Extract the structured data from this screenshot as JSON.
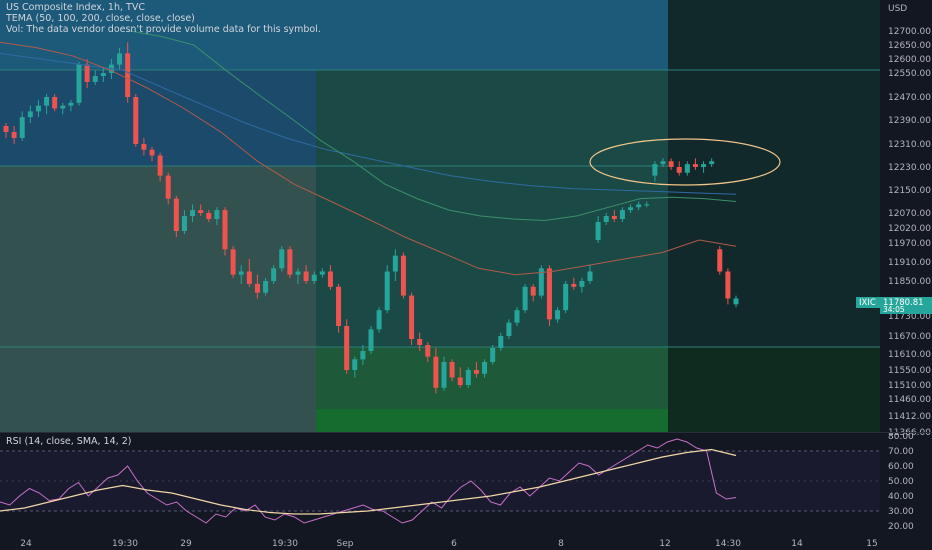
{
  "header": {
    "title": "US Composite Index, 1h, TVC",
    "tema": "TEMA (50, 100, 200, close, close, close)",
    "vol": "Vol: The data vendor doesn't provide volume data for this symbol."
  },
  "rsi_header": "RSI (14, close, SMA, 14, 2)",
  "currency": "USD",
  "symbol": "IXIC",
  "last_price": "11780.81",
  "countdown": "34:05",
  "colors": {
    "background": "#131722",
    "up": "#26a69a",
    "down": "#ef5350",
    "tema_fast": "#3b8f6a",
    "tema_mid": "#b05a4a",
    "tema_slow": "#2f6aa3",
    "rsi": "#c770c8",
    "rsi_ma": "#f0d6a6",
    "ellipse": "#f0c48a"
  },
  "chart_data": [
    {
      "type": "candlestick",
      "title": "US Composite Index, 1h, TVC",
      "ylim": [
        11366,
        12780
      ],
      "y_ticks": [
        12700,
        12650,
        12600,
        12550,
        12470,
        12390,
        12310,
        12230,
        12150,
        12070,
        12020,
        11970,
        11910,
        11850,
        11730,
        11670,
        11610,
        11550,
        11510,
        11460,
        11412,
        11366
      ],
      "x_ticks": [
        "24",
        "19:30",
        "29",
        "19:30",
        "Sep",
        "6",
        "8",
        "12",
        "14:30",
        "14",
        "15"
      ],
      "candles": [
        [
          12370,
          12380,
          12330,
          12350
        ],
        [
          12350,
          12370,
          12310,
          12330
        ],
        [
          12330,
          12420,
          12320,
          12400
        ],
        [
          12400,
          12440,
          12380,
          12420
        ],
        [
          12420,
          12460,
          12400,
          12440
        ],
        [
          12440,
          12480,
          12410,
          12470
        ],
        [
          12470,
          12480,
          12420,
          12430
        ],
        [
          12430,
          12450,
          12410,
          12440
        ],
        [
          12440,
          12460,
          12420,
          12450
        ],
        [
          12450,
          12590,
          12440,
          12580
        ],
        [
          12580,
          12600,
          12500,
          12520
        ],
        [
          12520,
          12560,
          12510,
          12540
        ],
        [
          12540,
          12570,
          12520,
          12550
        ],
        [
          12550,
          12600,
          12530,
          12580
        ],
        [
          12580,
          12640,
          12560,
          12620
        ],
        [
          12620,
          12660,
          12450,
          12470
        ],
        [
          12470,
          12480,
          12300,
          12310
        ],
        [
          12310,
          12330,
          12270,
          12290
        ],
        [
          12290,
          12300,
          12250,
          12270
        ],
        [
          12270,
          12280,
          12180,
          12200
        ],
        [
          12200,
          12210,
          12100,
          12120
        ],
        [
          12120,
          12130,
          11990,
          12010
        ],
        [
          12010,
          12080,
          12000,
          12060
        ],
        [
          12060,
          12100,
          12040,
          12080
        ],
        [
          12080,
          12100,
          12060,
          12070
        ],
        [
          12070,
          12080,
          12040,
          12050
        ],
        [
          12050,
          12090,
          12030,
          12080
        ],
        [
          12080,
          12090,
          11930,
          11950
        ],
        [
          11950,
          11960,
          11860,
          11870
        ],
        [
          11870,
          11900,
          11840,
          11880
        ],
        [
          11880,
          11920,
          11830,
          11840
        ],
        [
          11840,
          11870,
          11790,
          11810
        ],
        [
          11810,
          11860,
          11800,
          11850
        ],
        [
          11850,
          11900,
          11840,
          11890
        ],
        [
          11890,
          11960,
          11880,
          11950
        ],
        [
          11950,
          11960,
          11860,
          11870
        ],
        [
          11870,
          11890,
          11840,
          11880
        ],
        [
          11880,
          11900,
          11840,
          11850
        ],
        [
          11850,
          11880,
          11840,
          11870
        ],
        [
          11870,
          11890,
          11860,
          11880
        ],
        [
          11880,
          11900,
          11820,
          11830
        ],
        [
          11830,
          11840,
          11680,
          11700
        ],
        [
          11700,
          11720,
          11540,
          11550
        ],
        [
          11550,
          11600,
          11530,
          11590
        ],
        [
          11590,
          11640,
          11570,
          11620
        ],
        [
          11620,
          11700,
          11610,
          11690
        ],
        [
          11690,
          11760,
          11680,
          11750
        ],
        [
          11750,
          11900,
          11740,
          11880
        ],
        [
          11880,
          11950,
          11850,
          11930
        ],
        [
          11930,
          11940,
          11790,
          11800
        ],
        [
          11800,
          11810,
          11640,
          11660
        ],
        [
          11660,
          11680,
          11620,
          11640
        ],
        [
          11640,
          11650,
          11580,
          11600
        ],
        [
          11600,
          11630,
          11480,
          11500
        ],
        [
          11500,
          11600,
          11490,
          11580
        ],
        [
          11580,
          11590,
          11520,
          11530
        ],
        [
          11530,
          11560,
          11500,
          11510
        ],
        [
          11510,
          11560,
          11500,
          11550
        ],
        [
          11550,
          11580,
          11530,
          11540
        ],
        [
          11540,
          11590,
          11530,
          11580
        ],
        [
          11580,
          11640,
          11570,
          11630
        ],
        [
          11630,
          11680,
          11620,
          11670
        ],
        [
          11670,
          11720,
          11660,
          11710
        ],
        [
          11710,
          11760,
          11700,
          11750
        ],
        [
          11750,
          11840,
          11740,
          11830
        ],
        [
          11830,
          11840,
          11780,
          11800
        ],
        [
          11800,
          11900,
          11790,
          11890
        ],
        [
          11890,
          11900,
          11700,
          11720
        ],
        [
          11720,
          11760,
          11710,
          11750
        ],
        [
          11750,
          11850,
          11740,
          11840
        ],
        [
          11840,
          11860,
          11820,
          11830
        ],
        [
          11830,
          11860,
          11810,
          11850
        ],
        [
          11850,
          11900,
          11840,
          11880
        ],
        [
          11980,
          12060,
          11970,
          12040
        ],
        [
          12040,
          12070,
          12030,
          12060
        ],
        [
          12060,
          12080,
          12040,
          12050
        ],
        [
          12050,
          12090,
          12040,
          12080
        ],
        [
          12080,
          12100,
          12070,
          12090
        ],
        [
          12090,
          12110,
          12080,
          12100
        ],
        [
          12100,
          12110,
          12090,
          12100
        ],
        [
          12200,
          12250,
          12180,
          12240
        ],
        [
          12240,
          12260,
          12230,
          12250
        ],
        [
          12250,
          12260,
          12220,
          12230
        ],
        [
          12230,
          12250,
          12200,
          12210
        ],
        [
          12210,
          12250,
          12200,
          12240
        ],
        [
          12240,
          12260,
          12220,
          12230
        ],
        [
          12230,
          12250,
          12210,
          12240
        ],
        [
          12240,
          12260,
          12230,
          12250
        ],
        [
          11950,
          11960,
          11870,
          11880
        ],
        [
          11880,
          11890,
          11770,
          11790
        ],
        [
          11770,
          11800,
          11760,
          11790
        ]
      ],
      "tema_fast": [
        12700,
        12680,
        12650,
        12560,
        12480,
        12400,
        12320,
        12250,
        12170,
        12120,
        12080,
        12060,
        12050,
        12045,
        12060,
        12090,
        12120,
        12125,
        12120,
        12110
      ],
      "tema_mid": [
        12660,
        12640,
        12610,
        12560,
        12500,
        12430,
        12350,
        12250,
        12170,
        12110,
        12050,
        11990,
        11940,
        11890,
        11870,
        11880,
        11900,
        11920,
        11940,
        11980,
        11960
      ],
      "tema_slow": [
        12620,
        12600,
        12580,
        12560,
        12500,
        12440,
        12380,
        12330,
        12290,
        12260,
        12230,
        12200,
        12180,
        12165,
        12155,
        12150,
        12145,
        12140,
        12135
      ]
    },
    {
      "type": "line",
      "title": "RSI (14, close, SMA, 14, 2)",
      "ylim": [
        16,
        80
      ],
      "y_ticks": [
        80,
        70,
        60,
        50,
        40,
        30,
        20
      ],
      "series": [
        {
          "values": [
            36,
            34,
            40,
            45,
            42,
            37,
            38,
            45,
            49,
            40,
            46,
            52,
            54,
            60,
            50,
            42,
            38,
            34,
            36,
            30,
            26,
            22,
            28,
            26,
            32,
            30,
            34,
            26,
            24,
            28,
            26,
            22,
            24,
            26,
            28,
            30,
            32,
            34,
            31,
            30,
            26,
            22,
            24,
            30,
            36,
            32,
            40,
            46,
            50,
            44,
            36,
            34,
            42,
            46,
            40,
            46,
            52,
            50,
            56,
            62,
            60,
            54,
            58,
            62,
            66,
            70,
            74,
            72,
            76,
            78,
            76,
            72,
            70,
            42,
            38,
            39
          ]
        },
        {
          "values": [
            30,
            32,
            36,
            40,
            44,
            47,
            44,
            42,
            38,
            34,
            31,
            29,
            28,
            28,
            29,
            30,
            32,
            34,
            36,
            38,
            40,
            43,
            46,
            50,
            54,
            58,
            62,
            66,
            69,
            71,
            67
          ]
        }
      ]
    }
  ]
}
